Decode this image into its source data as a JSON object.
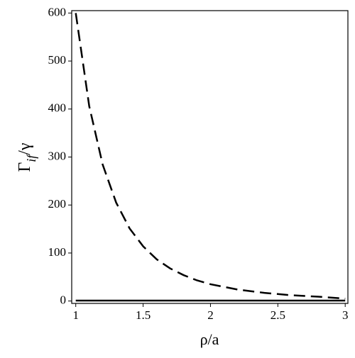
{
  "chart_data": {
    "type": "line",
    "x_label": "ρ/a",
    "y_label": {
      "main": "Γ",
      "sub": "if",
      "tail": "/γ"
    },
    "series": [
      {
        "color": "#000000",
        "dashed": true,
        "x": [
          1.0,
          1.1,
          1.2,
          1.3,
          1.4,
          1.5,
          1.6,
          1.7,
          1.8,
          1.9,
          2.0,
          2.2,
          2.4,
          2.6,
          2.8,
          3.0
        ],
        "values": [
          600,
          406,
          284,
          205,
          151,
          114,
          87,
          68,
          54,
          43,
          35,
          24,
          17,
          12,
          9,
          5
        ]
      },
      {
        "color": "#000000",
        "dashed": false,
        "x": [
          1.0,
          3.0
        ],
        "values": [
          1,
          1
        ]
      }
    ],
    "xlim": [
      0.97,
      3.02
    ],
    "ylim": [
      -5,
      605
    ],
    "xticks": [
      1,
      1.5,
      2,
      2.5,
      3
    ],
    "yticks": [
      0,
      100,
      200,
      300,
      400,
      500,
      600
    ],
    "grid": false
  }
}
